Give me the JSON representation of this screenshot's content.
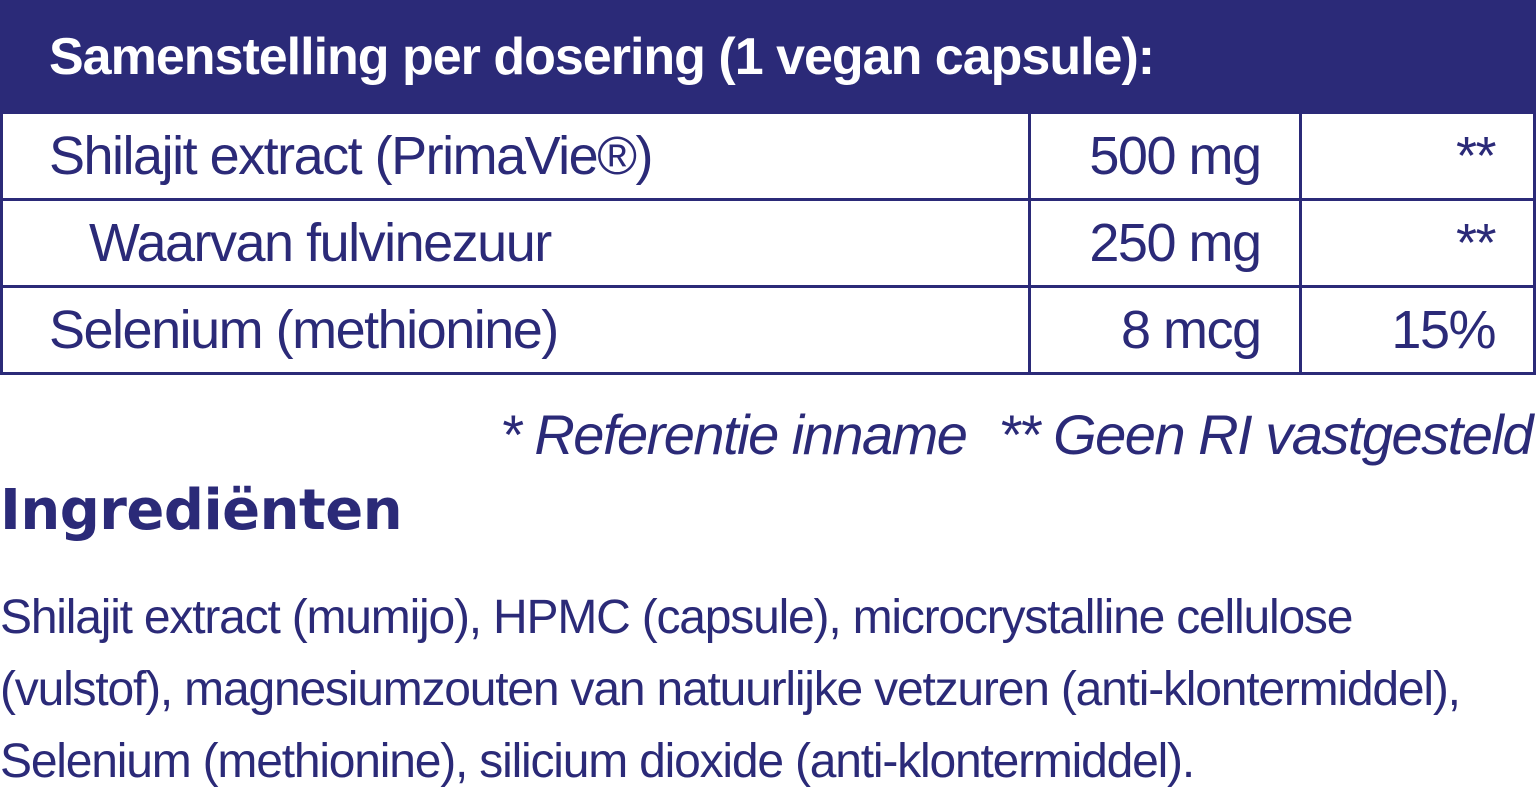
{
  "table": {
    "header": "Samenstelling per dosering (1 vegan capsule):",
    "rows": [
      {
        "name": "Shilajit extract (PrimaVie®)",
        "amount": "500 mg",
        "ri": "**"
      },
      {
        "name": "Waarvan fulvinezuur",
        "amount": "250 mg",
        "ri": "**"
      },
      {
        "name": "Selenium (methionine)",
        "amount": "8 mcg",
        "ri": "15%"
      }
    ]
  },
  "footnotes": {
    "reference": "* Referentie inname",
    "no_ri": "** Geen RI vastgesteld"
  },
  "ingredients": {
    "heading": "Ingrediënten",
    "text": "Shilajit extract (mumijo), HPMC (capsule), microcrystalline cellulose (vulstof), magnesiumzouten van natuurlijke vetzuren (anti-klontermiddel), Selenium (methionine), silicium dioxide (anti-klontermiddel)."
  },
  "colors": {
    "brand_navy": "#2b2a78",
    "header_text": "#ffffff"
  }
}
